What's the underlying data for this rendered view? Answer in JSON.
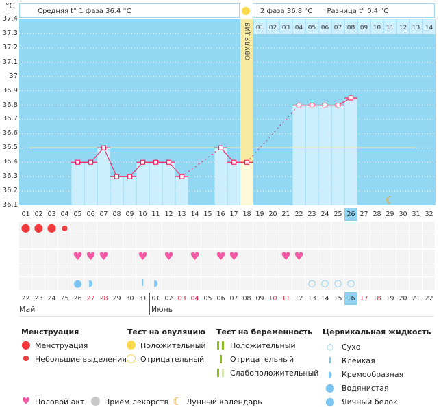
{
  "y_axis": {
    "unit": "°C",
    "labels": [
      "37.4",
      "37.3",
      "37.2",
      "37.1",
      "37",
      "36.9",
      "36.8",
      "36.7",
      "36.6",
      "36.5",
      "36.4",
      "36.3",
      "36.2",
      "36.1"
    ]
  },
  "header": {
    "phase1": "Средняя t° 1 фаза 36.4 °C",
    "phase2": "2 фаза 36.8 °C",
    "difference": "Разница t° 0.4 °C"
  },
  "ovulation_label": "ОВУЛЯЦИЯ",
  "ovulation_day": 18,
  "phase2_days": [
    "01",
    "02",
    "03",
    "04",
    "05",
    "06",
    "07",
    "08",
    "09",
    "10",
    "11",
    "12",
    "13",
    "14"
  ],
  "colors": {
    "background": "#92d8f2",
    "bar": "#cdeefc",
    "line": "#f0306a",
    "coverline": "#f5e99a",
    "ovulation": "#f7eaa0"
  },
  "chart_data": {
    "type": "line",
    "cycle_days": [
      "01",
      "02",
      "03",
      "04",
      "05",
      "06",
      "07",
      "08",
      "09",
      "10",
      "11",
      "12",
      "13",
      "14",
      "15",
      "16",
      "17",
      "18",
      "19",
      "20",
      "21",
      "22",
      "23",
      "24",
      "25",
      "26",
      "27",
      "28",
      "29",
      "30",
      "31",
      "32"
    ],
    "temperatures": [
      null,
      null,
      null,
      null,
      36.4,
      36.4,
      36.5,
      36.3,
      36.3,
      36.4,
      36.4,
      36.4,
      36.3,
      null,
      null,
      36.5,
      36.4,
      36.4,
      null,
      null,
      null,
      36.8,
      36.8,
      36.8,
      36.8,
      36.85,
      null,
      null,
      null,
      null,
      null,
      null
    ],
    "coverline": 36.5,
    "ylim": [
      36.1,
      37.4
    ],
    "current_day": "26"
  },
  "calendar": {
    "dates": [
      "22",
      "23",
      "24",
      "25",
      "26",
      "27",
      "28",
      "29",
      "30",
      "31",
      "01",
      "02",
      "03",
      "04",
      "05",
      "06",
      "07",
      "08",
      "09",
      "10",
      "11",
      "12",
      "13",
      "14",
      "15",
      "16",
      "17",
      "18",
      "19",
      "20",
      "21",
      "22"
    ],
    "weekend": [
      "27",
      "28",
      "03",
      "04",
      "10",
      "11",
      "17",
      "18"
    ],
    "today": "16",
    "months": [
      "Май",
      "Июнь"
    ]
  },
  "events": {
    "menstruation": {
      "1": "big",
      "2": "big",
      "3": "big",
      "4": "small"
    },
    "sex": [
      5,
      6,
      7,
      10,
      12,
      14,
      16,
      17,
      21,
      22
    ],
    "cervical": {
      "5": "watery",
      "6": "creamy",
      "10": "sticky",
      "11": "creamy",
      "23": "dry",
      "24": "dry",
      "25": "dry",
      "26": "dry"
    },
    "moon_day": 29
  },
  "legend": {
    "menstruation": {
      "title": "Менструация",
      "items": [
        "Менструация",
        "Небольшие выделения"
      ]
    },
    "ovulation_test": {
      "title": "Тест на овуляцию",
      "items": [
        "Положительный",
        "Отрицательный"
      ]
    },
    "pregnancy_test": {
      "title": "Тест на беременность",
      "items": [
        "Положительный",
        "Отрицательный",
        "Слабоположительный"
      ]
    },
    "cervical": {
      "title": "Цервикальная жидкость",
      "items": [
        "Сухо",
        "Клейкая",
        "Кремообразная",
        "Водянистая",
        "Яичный белок"
      ]
    },
    "other": [
      "Половой акт",
      "Прием лекарств",
      "Лунный календарь"
    ]
  }
}
